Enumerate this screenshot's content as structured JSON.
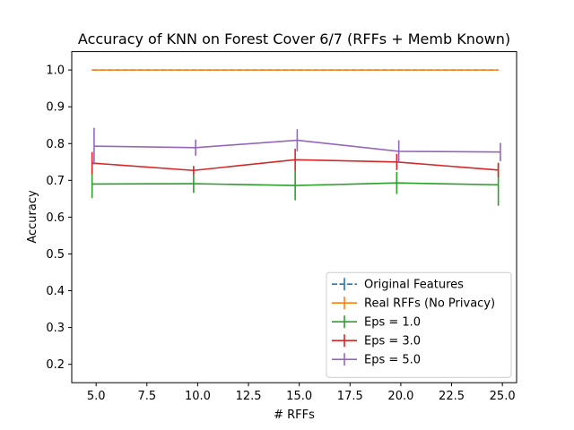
{
  "chart_data": {
    "type": "line",
    "title": "Accuracy of KNN on Forest Cover 6/7 (RFFs + Memb Known)",
    "xlabel": "# RFFs",
    "ylabel": "Accuracy",
    "xlim": [
      3.8,
      25.7
    ],
    "ylim": [
      0.15,
      1.05
    ],
    "x": [
      4.8,
      9.8,
      14.8,
      19.8,
      24.8
    ],
    "xticks": [
      5.0,
      7.5,
      10.0,
      12.5,
      15.0,
      17.5,
      20.0,
      22.5,
      25.0
    ],
    "xtick_labels": [
      "5.0",
      "7.5",
      "10.0",
      "12.5",
      "15.0",
      "17.5",
      "20.0",
      "22.5",
      "25.0"
    ],
    "yticks": [
      0.2,
      0.3,
      0.4,
      0.5,
      0.6,
      0.7,
      0.8,
      0.9,
      1.0
    ],
    "ytick_labels": [
      "0.2",
      "0.3",
      "0.4",
      "0.5",
      "0.6",
      "0.7",
      "0.8",
      "0.9",
      "1.0"
    ],
    "grid": false,
    "legend_position": "lower-right",
    "series": [
      {
        "name": "Original Features",
        "color": "#1f77b4",
        "dashed": true,
        "x_offset": 0.0,
        "values": [
          1.0,
          1.0,
          1.0,
          1.0,
          1.0
        ],
        "errors": [
          0.0,
          0.0,
          0.0,
          0.0,
          0.0
        ]
      },
      {
        "name": "Real RFFs (No Privacy)",
        "color": "#ff7f0e",
        "dashed": false,
        "x_offset": 0.0,
        "values": [
          1.0,
          1.0,
          1.0,
          1.0,
          1.0
        ],
        "errors": [
          0.001,
          0.001,
          0.001,
          0.001,
          0.001
        ]
      },
      {
        "name": "Eps = 1.0",
        "color": "#2ca02c",
        "dashed": false,
        "x_offset": 0.0,
        "values": [
          0.69,
          0.691,
          0.686,
          0.693,
          0.688
        ],
        "errors": [
          0.038,
          0.025,
          0.04,
          0.03,
          0.057
        ]
      },
      {
        "name": "Eps = 3.0",
        "color": "#d62728",
        "dashed": false,
        "x_offset": 0.0,
        "values": [
          0.747,
          0.727,
          0.756,
          0.75,
          0.728
        ],
        "errors": [
          0.03,
          0.012,
          0.03,
          0.022,
          0.02
        ]
      },
      {
        "name": "Eps = 5.0",
        "color": "#9467bd",
        "dashed": false,
        "x_offset": 0.1,
        "values": [
          0.793,
          0.789,
          0.809,
          0.779,
          0.777
        ],
        "errors": [
          0.05,
          0.022,
          0.03,
          0.03,
          0.025
        ]
      }
    ]
  }
}
